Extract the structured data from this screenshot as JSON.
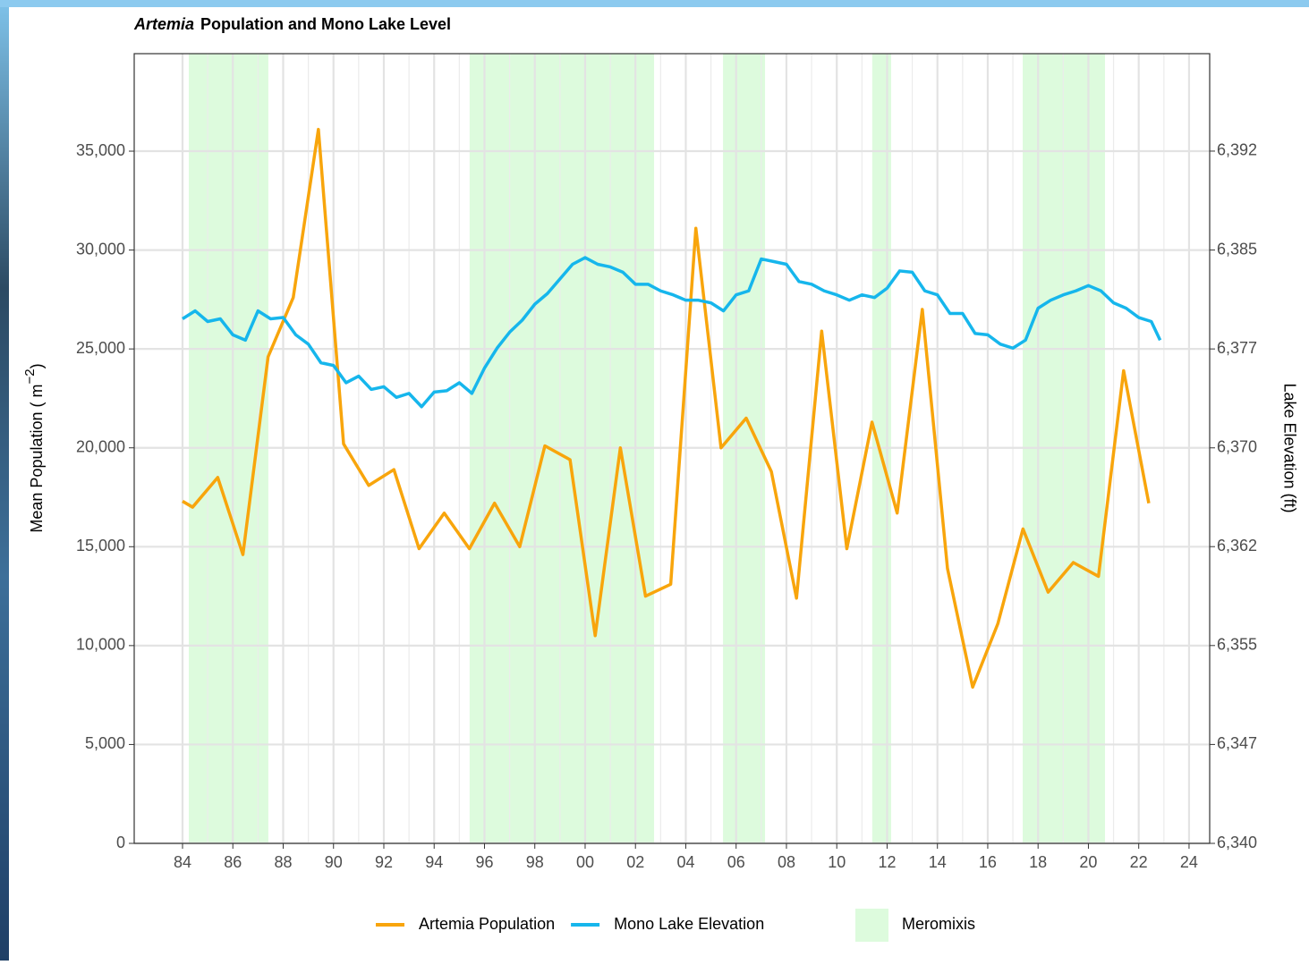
{
  "chart_data": {
    "type": "line",
    "title": [
      "Artemia",
      "Population and Mono Lake Level"
    ],
    "y_label": [
      "Mean Population ( m",
      "−2",
      ")"
    ],
    "y2_label": "Lake Elevation (ft)",
    "xlim": [
      1982.08,
      2024.82
    ],
    "xticks": [
      {
        "value": 1984,
        "label": "84"
      },
      {
        "value": 1986,
        "label": "86"
      },
      {
        "value": 1988,
        "label": "88"
      },
      {
        "value": 1990,
        "label": "90"
      },
      {
        "value": 1992,
        "label": "92"
      },
      {
        "value": 1994,
        "label": "94"
      },
      {
        "value": 1996,
        "label": "96"
      },
      {
        "value": 1998,
        "label": "98"
      },
      {
        "value": 2000,
        "label": "00"
      },
      {
        "value": 2002,
        "label": "02"
      },
      {
        "value": 2004,
        "label": "04"
      },
      {
        "value": 2006,
        "label": "06"
      },
      {
        "value": 2008,
        "label": "08"
      },
      {
        "value": 2010,
        "label": "10"
      },
      {
        "value": 2012,
        "label": "12"
      },
      {
        "value": 2014,
        "label": "14"
      },
      {
        "value": 2016,
        "label": "16"
      },
      {
        "value": 2018,
        "label": "18"
      },
      {
        "value": 2020,
        "label": "20"
      },
      {
        "value": 2022,
        "label": "22"
      },
      {
        "value": 2024,
        "label": "24"
      }
    ],
    "x_minor_grid": [
      1985,
      1987,
      1989,
      1991,
      1993,
      1995,
      1997,
      1999,
      2001,
      2003,
      2005,
      2007,
      2009,
      2011,
      2013,
      2015,
      2017,
      2019,
      2021,
      2023
    ],
    "ylim": [
      0,
      39930
    ],
    "yticks": [
      0,
      {
        "value": 5000,
        "label": "5,000"
      },
      {
        "value": 10000,
        "label": "10,000"
      },
      {
        "value": 15000,
        "label": "15,000"
      },
      {
        "value": 20000,
        "label": "20,000"
      },
      {
        "value": 25000,
        "label": "25,000"
      },
      {
        "value": 30000,
        "label": "30,000"
      },
      {
        "value": 35000,
        "label": "35,000"
      }
    ],
    "y2lim": [
      6340,
      6399.32
    ],
    "y2ticks": [
      {
        "value": 6340,
        "label": "6,340"
      },
      {
        "value": 6347.43,
        "label": "6,347"
      },
      {
        "value": 6354.86,
        "label": "6,355"
      },
      {
        "value": 6362.29,
        "label": "6,362"
      },
      {
        "value": 6369.71,
        "label": "6,370"
      },
      {
        "value": 6377.14,
        "label": "6,377"
      },
      {
        "value": 6384.57,
        "label": "6,385"
      },
      {
        "value": 6392,
        "label": "6,392"
      }
    ],
    "grid": true,
    "legend": "bottom",
    "shaded": {
      "name": "Meromixis",
      "color": "#ddfbdd",
      "regions": [
        [
          1984.25,
          1987.41
        ],
        [
          1995.41,
          2002.74
        ],
        [
          2005.48,
          2007.15
        ],
        [
          2011.41,
          2012.16
        ],
        [
          2017.39,
          2020.66
        ]
      ]
    },
    "series": [
      {
        "name": "Artemia Population",
        "color": "#f8a50c",
        "x": [
          1984.0,
          1984.4,
          1985.4,
          1986.4,
          1987.4,
          1988.4,
          1989.4,
          1990.4,
          1991.4,
          1992.4,
          1993.4,
          1994.4,
          1995.4,
          1996.4,
          1997.4,
          1998.4,
          1999.4,
          2000.4,
          2001.4,
          2002.4,
          2003.4,
          2004.4,
          2005.4,
          2006.4,
          2007.4,
          2008.4,
          2009.4,
          2010.4,
          2011.4,
          2012.4,
          2013.4,
          2014.4,
          2015.4,
          2016.4,
          2017.4,
          2018.4,
          2019.4,
          2020.4,
          2021.4,
          2022.4
        ],
        "values": [
          17300,
          17000,
          18500,
          14600,
          24600,
          27600,
          36100,
          20200,
          18100,
          18900,
          14900,
          16700,
          14900,
          17200,
          15000,
          20100,
          19400,
          10500,
          20000,
          12500,
          13100,
          31100,
          20000,
          21500,
          18800,
          12400,
          25900,
          14900,
          21300,
          16700,
          27000,
          13900,
          7900,
          11100,
          15900,
          12700,
          14200,
          13500,
          23900,
          17200
        ]
      },
      {
        "name": "Mono Lake Elevation",
        "color": "#16b6ec",
        "axis": "y2",
        "x": [
          1984.0,
          1984.5,
          1985.0,
          1985.5,
          1986.0,
          1986.5,
          1987.0,
          1987.5,
          1988.0,
          1988.5,
          1989.0,
          1989.5,
          1990.0,
          1990.5,
          1991.0,
          1991.5,
          1992.0,
          1992.5,
          1993.0,
          1993.5,
          1994.0,
          1994.5,
          1995.0,
          1995.5,
          1996.0,
          1996.5,
          1997.0,
          1997.5,
          1998.0,
          1998.5,
          1999.0,
          1999.5,
          2000.0,
          2000.5,
          2001.0,
          2001.5,
          2002.0,
          2002.5,
          2003.0,
          2003.5,
          2004.0,
          2004.5,
          2005.0,
          2005.5,
          2006.0,
          2006.5,
          2007.0,
          2007.5,
          2008.0,
          2008.5,
          2009.0,
          2009.5,
          2010.0,
          2010.5,
          2011.0,
          2011.5,
          2012.0,
          2012.5,
          2013.0,
          2013.5,
          2014.0,
          2014.5,
          2015.0,
          2015.5,
          2016.0,
          2016.5,
          2017.0,
          2017.5,
          2018.0,
          2018.5,
          2019.0,
          2019.5,
          2020.0,
          2020.5,
          2021.0,
          2021.5,
          2022.0,
          2022.5,
          2022.85
        ],
        "values": [
          6379.4,
          6380.0,
          6379.2,
          6379.4,
          6378.2,
          6377.8,
          6380.0,
          6379.4,
          6379.5,
          6378.2,
          6377.5,
          6376.1,
          6375.9,
          6374.6,
          6375.1,
          6374.1,
          6374.3,
          6373.5,
          6373.8,
          6372.8,
          6373.9,
          6374.0,
          6374.6,
          6373.8,
          6375.7,
          6377.2,
          6378.4,
          6379.3,
          6380.5,
          6381.3,
          6382.4,
          6383.5,
          6384.0,
          6383.5,
          6383.3,
          6382.9,
          6382.0,
          6382.0,
          6381.5,
          6381.2,
          6380.8,
          6380.8,
          6380.6,
          6380.0,
          6381.2,
          6381.5,
          6383.9,
          6383.7,
          6383.5,
          6382.2,
          6382.0,
          6381.5,
          6381.2,
          6380.8,
          6381.2,
          6381.0,
          6381.7,
          6383.0,
          6382.9,
          6381.5,
          6381.2,
          6379.8,
          6379.8,
          6378.3,
          6378.2,
          6377.5,
          6377.2,
          6377.8,
          6380.2,
          6380.8,
          6381.2,
          6381.5,
          6381.9,
          6381.5,
          6380.6,
          6380.2,
          6379.5,
          6379.2,
          6377.8
        ]
      }
    ]
  }
}
